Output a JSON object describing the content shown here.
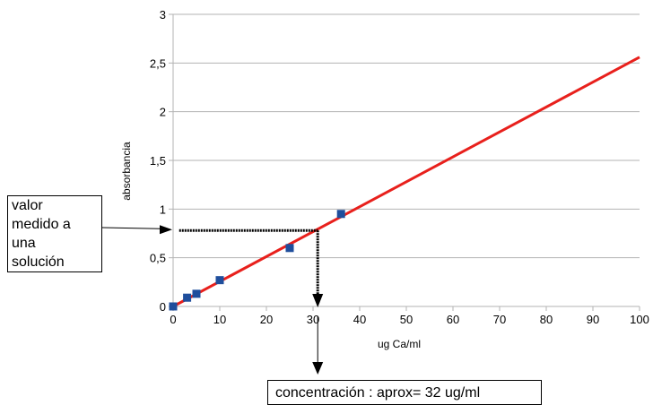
{
  "chart_data": {
    "type": "scatter",
    "title": "",
    "xlabel": "ug Ca/ml",
    "ylabel": "absorbancia",
    "xlim": [
      0,
      100
    ],
    "ylim": [
      0,
      3
    ],
    "x_ticks": [
      "0",
      "10",
      "20",
      "30",
      "40",
      "50",
      "60",
      "70",
      "80",
      "90",
      "100"
    ],
    "y_ticks": [
      "0",
      "0,5",
      "1",
      "1,5",
      "2",
      "2,5",
      "3"
    ],
    "grid": "horizontal",
    "series": [
      {
        "kind": "points",
        "color": "#1f4e9c",
        "points": [
          {
            "x": 0,
            "y": 0
          },
          {
            "x": 3,
            "y": 0.09
          },
          {
            "x": 5,
            "y": 0.13
          },
          {
            "x": 10,
            "y": 0.27
          },
          {
            "x": 25,
            "y": 0.6
          },
          {
            "x": 36,
            "y": 0.95
          }
        ]
      },
      {
        "kind": "trendline",
        "color": "#e8201c",
        "from": {
          "x": 0,
          "y": 0
        },
        "to": {
          "x": 100,
          "y": 2.56
        }
      }
    ],
    "annotations": {
      "measured_value": {
        "lines": [
          "valor",
          "medido a",
          "una",
          "solución"
        ],
        "y": 0.78,
        "x_at_line": 31
      },
      "concentration": {
        "text": "concentración : aprox= 32 ug/ml"
      }
    }
  }
}
